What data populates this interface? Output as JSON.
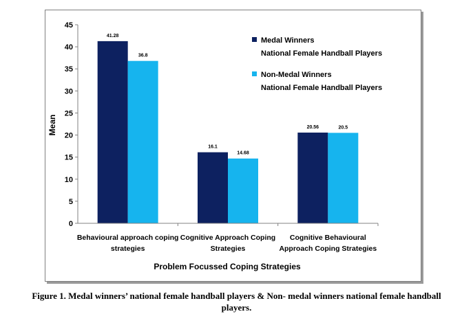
{
  "chart_data": {
    "type": "bar",
    "title": "",
    "xlabel": "Problem Focussed Coping Strategies",
    "ylabel": "Mean",
    "ylim": [
      0,
      45
    ],
    "yticks": [
      0,
      5,
      10,
      15,
      20,
      25,
      30,
      35,
      40,
      45
    ],
    "grid": false,
    "legend_position": "top-right",
    "categories": [
      [
        "Behavioural approach coping",
        "strategies"
      ],
      [
        "Cognitive Approach Coping",
        "Strategies"
      ],
      [
        "Cognitive Behavioural",
        "Approach Coping Strategies"
      ]
    ],
    "series": [
      {
        "name": [
          "Medal Winners",
          "National Female Handball Players"
        ],
        "color": "#0d2160",
        "values": [
          41.28,
          16.1,
          20.56
        ],
        "labels": [
          "41.28",
          "16.1",
          "20.56"
        ]
      },
      {
        "name": [
          "Non-Medal Winners",
          "National Female Handball Players"
        ],
        "color": "#16b4ee",
        "values": [
          36.8,
          14.68,
          20.5
        ],
        "labels": [
          "36.8",
          "14.68",
          "20.5"
        ]
      }
    ]
  },
  "caption": {
    "line1": "Figure 1. Medal winners’ national female handball players & Non- medal winners national female handball",
    "line2": "players."
  }
}
